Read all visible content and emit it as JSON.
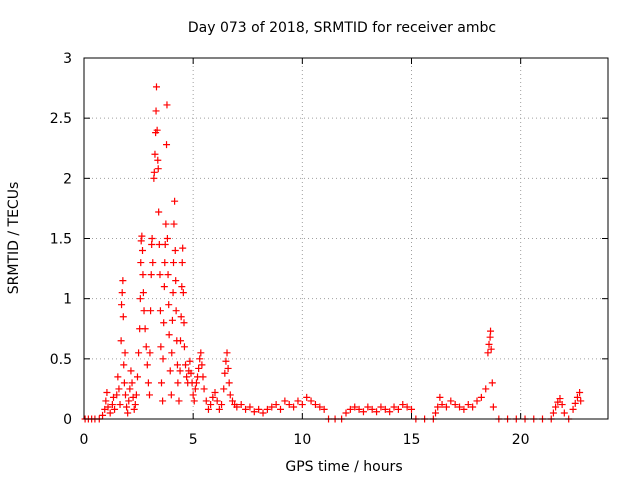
{
  "chart_data": {
    "type": "scatter",
    "title": "Day 073 of 2018, SRMTID for receiver ambc",
    "xlabel": "GPS time / hours",
    "ylabel": "SRMTID / TECUs",
    "xlim": [
      0,
      24
    ],
    "ylim": [
      0,
      3
    ],
    "xticks": [
      0,
      5,
      10,
      15,
      20
    ],
    "yticks": [
      0,
      0.5,
      1,
      1.5,
      2,
      2.5,
      3
    ],
    "grid": true,
    "marker": "+",
    "color": "#ff0000",
    "series": [
      {
        "name": "SRMTID",
        "points": [
          [
            0.05,
            0.0
          ],
          [
            0.2,
            0.0
          ],
          [
            0.35,
            0.0
          ],
          [
            0.5,
            0.0
          ],
          [
            0.7,
            0.0
          ],
          [
            0.85,
            0.03
          ],
          [
            0.95,
            0.08
          ],
          [
            1.0,
            0.15
          ],
          [
            1.05,
            0.22
          ],
          [
            1.1,
            0.1
          ],
          [
            1.2,
            0.05
          ],
          [
            1.3,
            0.12
          ],
          [
            1.35,
            0.18
          ],
          [
            1.4,
            0.08
          ],
          [
            1.5,
            0.2
          ],
          [
            1.55,
            0.35
          ],
          [
            1.6,
            0.25
          ],
          [
            1.65,
            0.12
          ],
          [
            1.7,
            0.65
          ],
          [
            1.72,
            0.95
          ],
          [
            1.75,
            1.05
          ],
          [
            1.78,
            1.15
          ],
          [
            1.8,
            0.85
          ],
          [
            1.82,
            0.45
          ],
          [
            1.85,
            0.3
          ],
          [
            1.88,
            0.55
          ],
          [
            1.9,
            0.2
          ],
          [
            1.95,
            0.1
          ],
          [
            2.0,
            0.05
          ],
          [
            2.05,
            0.15
          ],
          [
            2.1,
            0.25
          ],
          [
            2.15,
            0.4
          ],
          [
            2.2,
            0.3
          ],
          [
            2.25,
            0.18
          ],
          [
            2.3,
            0.08
          ],
          [
            2.35,
            0.12
          ],
          [
            2.4,
            0.2
          ],
          [
            2.45,
            0.35
          ],
          [
            2.5,
            0.55
          ],
          [
            2.55,
            0.75
          ],
          [
            2.58,
            1.0
          ],
          [
            2.6,
            1.3
          ],
          [
            2.62,
            1.48
          ],
          [
            2.65,
            1.52
          ],
          [
            2.68,
            1.4
          ],
          [
            2.7,
            1.2
          ],
          [
            2.72,
            1.05
          ],
          [
            2.75,
            0.9
          ],
          [
            2.8,
            0.75
          ],
          [
            2.85,
            0.6
          ],
          [
            2.9,
            0.45
          ],
          [
            2.95,
            0.3
          ],
          [
            3.0,
            0.2
          ],
          [
            3.02,
            0.55
          ],
          [
            3.05,
            0.9
          ],
          [
            3.08,
            1.2
          ],
          [
            3.1,
            1.45
          ],
          [
            3.12,
            1.5
          ],
          [
            3.15,
            1.3
          ],
          [
            3.2,
            2.0
          ],
          [
            3.22,
            2.05
          ],
          [
            3.25,
            2.2
          ],
          [
            3.28,
            2.38
          ],
          [
            3.3,
            2.56
          ],
          [
            3.32,
            2.76
          ],
          [
            3.35,
            2.4
          ],
          [
            3.38,
            2.15
          ],
          [
            3.4,
            2.08
          ],
          [
            3.42,
            1.72
          ],
          [
            3.45,
            1.45
          ],
          [
            3.48,
            1.2
          ],
          [
            3.5,
            0.9
          ],
          [
            3.52,
            0.6
          ],
          [
            3.55,
            0.3
          ],
          [
            3.6,
            0.15
          ],
          [
            3.62,
            0.5
          ],
          [
            3.65,
            0.8
          ],
          [
            3.68,
            1.1
          ],
          [
            3.7,
            1.3
          ],
          [
            3.72,
            1.45
          ],
          [
            3.75,
            1.62
          ],
          [
            3.78,
            2.28
          ],
          [
            3.8,
            2.61
          ],
          [
            3.82,
            1.5
          ],
          [
            3.85,
            1.2
          ],
          [
            3.88,
            0.95
          ],
          [
            3.9,
            0.7
          ],
          [
            3.95,
            0.4
          ],
          [
            4.0,
            0.2
          ],
          [
            4.02,
            0.55
          ],
          [
            4.05,
            0.82
          ],
          [
            4.08,
            1.05
          ],
          [
            4.1,
            1.3
          ],
          [
            4.12,
            1.62
          ],
          [
            4.15,
            1.81
          ],
          [
            4.18,
            1.4
          ],
          [
            4.2,
            1.15
          ],
          [
            4.22,
            0.9
          ],
          [
            4.25,
            0.65
          ],
          [
            4.28,
            0.45
          ],
          [
            4.3,
            0.3
          ],
          [
            4.35,
            0.15
          ],
          [
            4.4,
            0.4
          ],
          [
            4.42,
            0.65
          ],
          [
            4.45,
            0.85
          ],
          [
            4.48,
            1.1
          ],
          [
            4.5,
            1.3
          ],
          [
            4.52,
            1.42
          ],
          [
            4.55,
            1.05
          ],
          [
            4.58,
            0.8
          ],
          [
            4.6,
            0.6
          ],
          [
            4.65,
            0.45
          ],
          [
            4.7,
            0.35
          ],
          [
            4.75,
            0.3
          ],
          [
            4.8,
            0.4
          ],
          [
            4.85,
            0.48
          ],
          [
            4.9,
            0.38
          ],
          [
            4.95,
            0.3
          ],
          [
            5.0,
            0.2
          ],
          [
            5.05,
            0.15
          ],
          [
            5.1,
            0.25
          ],
          [
            5.15,
            0.3
          ],
          [
            5.2,
            0.35
          ],
          [
            5.25,
            0.42
          ],
          [
            5.3,
            0.5
          ],
          [
            5.35,
            0.55
          ],
          [
            5.4,
            0.45
          ],
          [
            5.45,
            0.35
          ],
          [
            5.5,
            0.25
          ],
          [
            5.6,
            0.15
          ],
          [
            5.7,
            0.08
          ],
          [
            5.8,
            0.12
          ],
          [
            5.9,
            0.18
          ],
          [
            6.0,
            0.22
          ],
          [
            6.1,
            0.15
          ],
          [
            6.2,
            0.08
          ],
          [
            6.3,
            0.12
          ],
          [
            6.4,
            0.25
          ],
          [
            6.45,
            0.38
          ],
          [
            6.5,
            0.48
          ],
          [
            6.55,
            0.55
          ],
          [
            6.6,
            0.42
          ],
          [
            6.65,
            0.3
          ],
          [
            6.7,
            0.2
          ],
          [
            6.8,
            0.15
          ],
          [
            6.9,
            0.12
          ],
          [
            7.0,
            0.1
          ],
          [
            7.2,
            0.12
          ],
          [
            7.4,
            0.08
          ],
          [
            7.6,
            0.1
          ],
          [
            7.8,
            0.06
          ],
          [
            8.0,
            0.08
          ],
          [
            8.2,
            0.05
          ],
          [
            8.4,
            0.08
          ],
          [
            8.6,
            0.1
          ],
          [
            8.8,
            0.12
          ],
          [
            9.0,
            0.08
          ],
          [
            9.2,
            0.15
          ],
          [
            9.4,
            0.12
          ],
          [
            9.6,
            0.1
          ],
          [
            9.8,
            0.15
          ],
          [
            10.0,
            0.12
          ],
          [
            10.2,
            0.18
          ],
          [
            10.4,
            0.15
          ],
          [
            10.6,
            0.12
          ],
          [
            10.8,
            0.1
          ],
          [
            11.0,
            0.08
          ],
          [
            11.2,
            0.0
          ],
          [
            11.5,
            0.0
          ],
          [
            11.8,
            0.0
          ],
          [
            12.0,
            0.05
          ],
          [
            12.2,
            0.08
          ],
          [
            12.4,
            0.1
          ],
          [
            12.6,
            0.08
          ],
          [
            12.8,
            0.06
          ],
          [
            13.0,
            0.1
          ],
          [
            13.2,
            0.08
          ],
          [
            13.4,
            0.06
          ],
          [
            13.6,
            0.1
          ],
          [
            13.8,
            0.08
          ],
          [
            14.0,
            0.06
          ],
          [
            14.2,
            0.1
          ],
          [
            14.4,
            0.08
          ],
          [
            14.6,
            0.12
          ],
          [
            14.8,
            0.1
          ],
          [
            15.0,
            0.08
          ],
          [
            15.2,
            0.0
          ],
          [
            15.6,
            0.0
          ],
          [
            16.0,
            0.0
          ],
          [
            16.1,
            0.05
          ],
          [
            16.2,
            0.1
          ],
          [
            16.3,
            0.18
          ],
          [
            16.4,
            0.12
          ],
          [
            16.6,
            0.1
          ],
          [
            16.8,
            0.15
          ],
          [
            17.0,
            0.12
          ],
          [
            17.2,
            0.1
          ],
          [
            17.4,
            0.08
          ],
          [
            17.6,
            0.12
          ],
          [
            17.8,
            0.1
          ],
          [
            18.0,
            0.15
          ],
          [
            18.2,
            0.18
          ],
          [
            18.4,
            0.25
          ],
          [
            18.5,
            0.55
          ],
          [
            18.55,
            0.62
          ],
          [
            18.6,
            0.68
          ],
          [
            18.62,
            0.73
          ],
          [
            18.65,
            0.58
          ],
          [
            18.7,
            0.3
          ],
          [
            18.75,
            0.1
          ],
          [
            19.0,
            0.0
          ],
          [
            19.4,
            0.0
          ],
          [
            19.8,
            0.0
          ],
          [
            20.2,
            0.0
          ],
          [
            20.6,
            0.0
          ],
          [
            21.0,
            0.0
          ],
          [
            21.4,
            0.0
          ],
          [
            21.5,
            0.05
          ],
          [
            21.6,
            0.1
          ],
          [
            21.7,
            0.14
          ],
          [
            21.8,
            0.17
          ],
          [
            21.9,
            0.12
          ],
          [
            22.0,
            0.05
          ],
          [
            22.2,
            0.0
          ],
          [
            22.4,
            0.08
          ],
          [
            22.5,
            0.13
          ],
          [
            22.6,
            0.18
          ],
          [
            22.7,
            0.22
          ],
          [
            22.75,
            0.15
          ]
        ]
      }
    ]
  }
}
